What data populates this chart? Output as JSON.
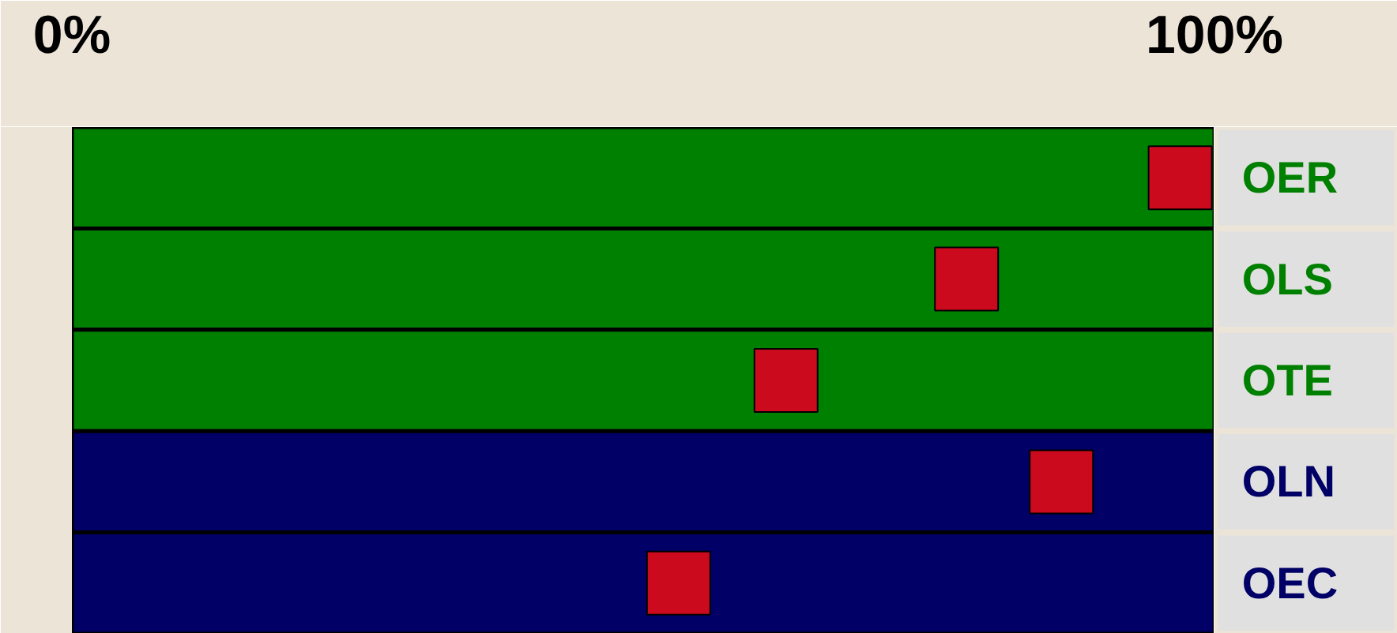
{
  "chart_data": {
    "type": "bar",
    "orientation": "horizontal",
    "categories": [
      "OER",
      "OLS",
      "OTE",
      "OLN",
      "OEC"
    ],
    "xlim": [
      0,
      100
    ],
    "xticks": [
      {
        "value": 0,
        "label": "0%"
      },
      {
        "value": 100,
        "label": "100%"
      }
    ],
    "tick_labels": "x",
    "series": [
      {
        "type": "bar",
        "colors": [
          "#008000",
          "#008000",
          "#008000",
          "#000066",
          "#000066"
        ],
        "values": [
          100,
          100,
          100,
          100,
          100
        ]
      },
      {
        "type": "scatter",
        "color": "#cc0a1e",
        "marker": "square",
        "values": [
          97,
          78.3,
          62.5,
          86.6,
          53.1
        ]
      }
    ]
  }
}
